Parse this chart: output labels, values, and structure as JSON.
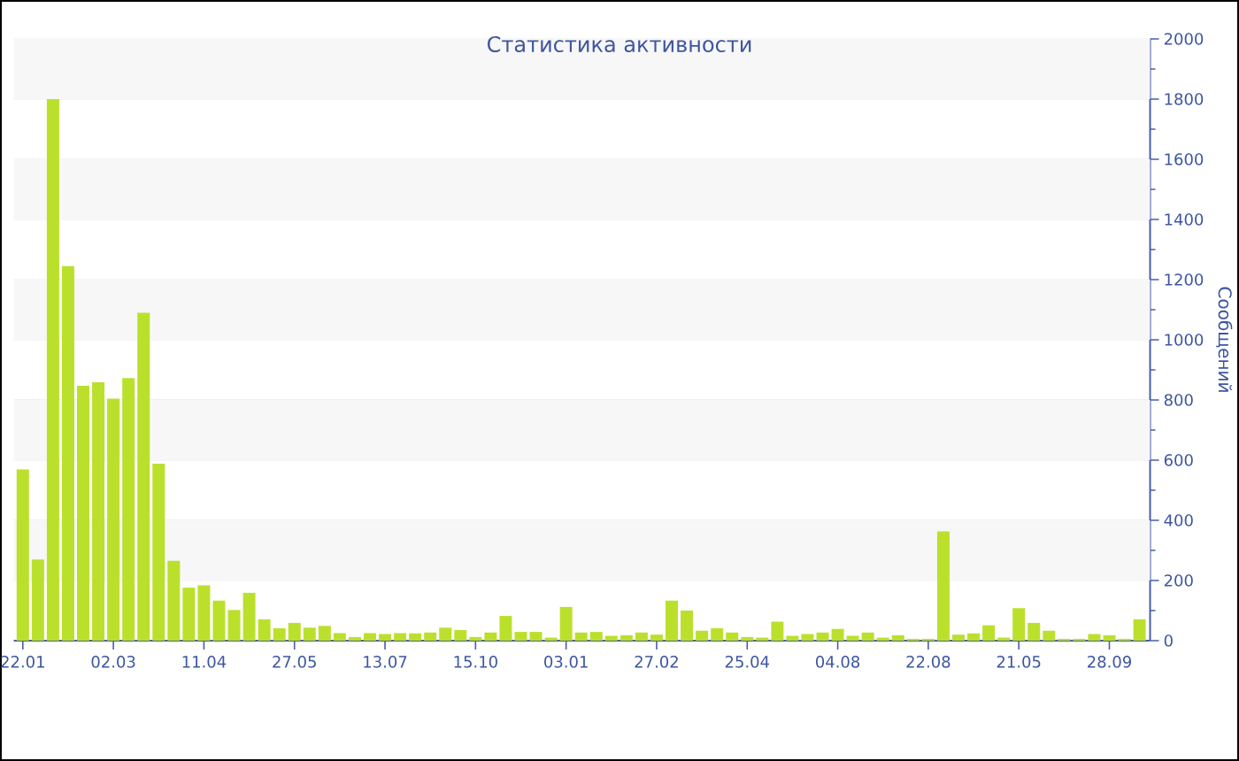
{
  "chart_data": {
    "type": "bar",
    "title": "Статистика активности",
    "ylabel": "Сообщений",
    "categories": [
      "22.01",
      null,
      null,
      null,
      null,
      null,
      "02.03",
      null,
      null,
      null,
      null,
      null,
      "11.04",
      null,
      null,
      null,
      null,
      null,
      "27.05",
      null,
      null,
      null,
      null,
      null,
      "13.07",
      null,
      null,
      null,
      null,
      null,
      "15.10",
      null,
      null,
      null,
      null,
      null,
      "03.01",
      null,
      null,
      null,
      null,
      null,
      "27.02",
      null,
      null,
      null,
      null,
      null,
      "25.04",
      null,
      null,
      null,
      null,
      null,
      "04.08",
      null,
      null,
      null,
      null,
      null,
      "22.08",
      null,
      null,
      null,
      null,
      null,
      "21.05",
      null,
      null,
      null,
      null,
      null,
      "28.09",
      null,
      null
    ],
    "values": [
      569,
      270,
      1800,
      1245,
      847,
      859,
      804,
      873,
      1090,
      588,
      265,
      176,
      184,
      133,
      102,
      159,
      71,
      41,
      59,
      43,
      49,
      25,
      12,
      25,
      22,
      25,
      24,
      27,
      43,
      35,
      12,
      27,
      82,
      29,
      29,
      10,
      112,
      27,
      29,
      16,
      18,
      27,
      20,
      133,
      100,
      33,
      41,
      27,
      12,
      10,
      63,
      16,
      22,
      27,
      39,
      16,
      27,
      10,
      18,
      6,
      6,
      363,
      20,
      24,
      51,
      10,
      108,
      59,
      33,
      6,
      6,
      22,
      18,
      6,
      71
    ],
    "color": "#bbe02c",
    "ylim": [
      0,
      2000
    ],
    "yticks": [
      0,
      200,
      400,
      600,
      800,
      1000,
      1200,
      1400,
      1600,
      1800,
      2000
    ],
    "grid": "y"
  }
}
